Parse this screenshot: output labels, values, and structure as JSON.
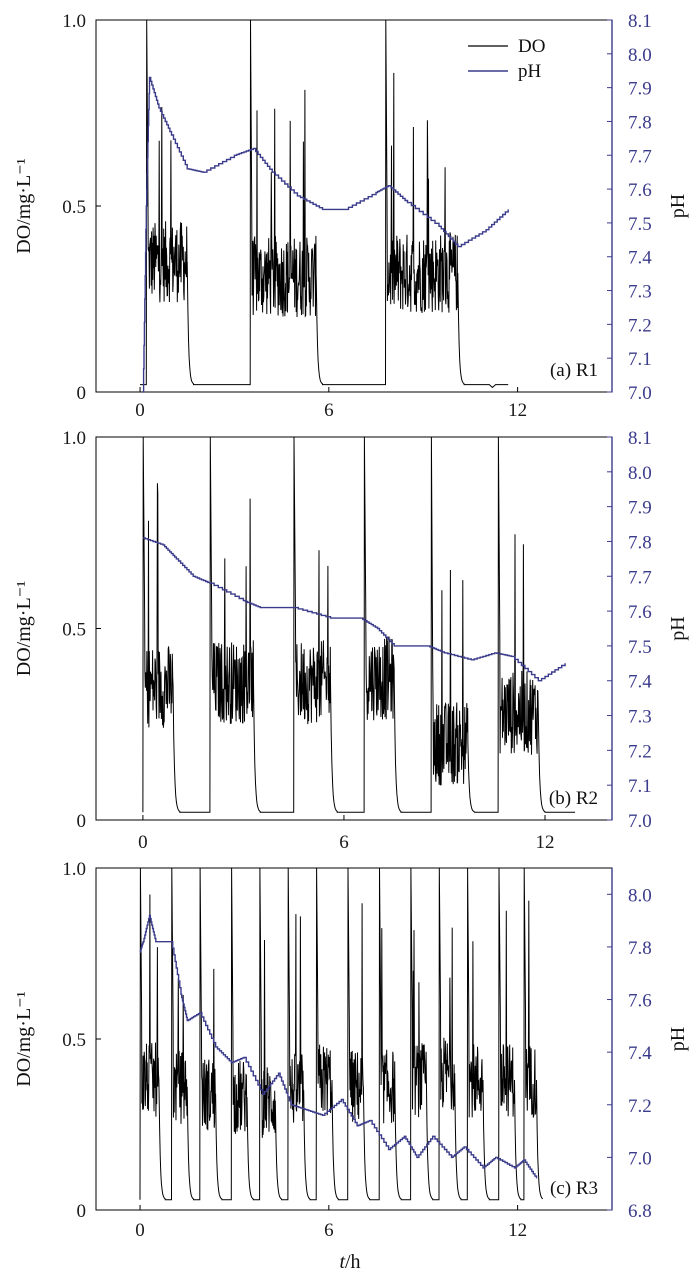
{
  "chart_data": [
    {
      "type": "line",
      "panel_label": "(a) R1",
      "xlabel": "t/h",
      "ylabel": "DO/mg·L⁻¹",
      "y2label": "pH",
      "xlim": [
        -1.4,
        15
      ],
      "ylim": [
        0,
        1.0
      ],
      "y2lim": [
        7.0,
        8.1
      ],
      "x_ticks": [
        0,
        6,
        12
      ],
      "y_ticks": [
        0,
        0.5,
        1.0
      ],
      "y_tick_labels": [
        "0",
        "0.5",
        "1.0"
      ],
      "y2_ticks": [
        7.0,
        7.1,
        7.2,
        7.3,
        7.4,
        7.5,
        7.6,
        7.7,
        7.8,
        7.9,
        8.0,
        8.1
      ],
      "legend": {
        "position": "top-right",
        "entries": [
          "DO",
          "pH"
        ]
      },
      "series": [
        {
          "name": "DO",
          "axis": "left",
          "color": "#000000",
          "aeration_phases": [
            [
              0.2,
              1.5,
              0.35
            ],
            [
              3.5,
              5.6,
              0.31
            ],
            [
              7.8,
              10.1,
              0.32
            ]
          ],
          "anoxic_level": 0.02,
          "end_x": 11.7
        },
        {
          "name": "pH",
          "axis": "right",
          "color": "#3b3b8c",
          "x": [
            0.1,
            0.2,
            0.3,
            0.6,
            1.0,
            1.5,
            2.0,
            3.0,
            3.6,
            4.2,
            5.0,
            5.8,
            6.5,
            7.5,
            7.9,
            8.5,
            9.5,
            10.1,
            11.0,
            11.7
          ],
          "y": [
            7.0,
            7.55,
            7.93,
            7.84,
            7.76,
            7.66,
            7.65,
            7.7,
            7.72,
            7.65,
            7.58,
            7.54,
            7.54,
            7.59,
            7.61,
            7.56,
            7.49,
            7.43,
            7.48,
            7.54
          ]
        }
      ]
    },
    {
      "type": "line",
      "panel_label": "(b) R2",
      "xlabel": "t/h",
      "ylabel": "DO/mg·L⁻¹",
      "y2label": "pH",
      "xlim": [
        -1.4,
        14
      ],
      "ylim": [
        0,
        1.0
      ],
      "y2lim": [
        7.0,
        8.1
      ],
      "x_ticks": [
        0,
        6,
        12
      ],
      "y_ticks": [
        0,
        0.5,
        1.0
      ],
      "y_tick_labels": [
        "0",
        "0.5",
        "1.0"
      ],
      "y2_ticks": [
        7.0,
        7.1,
        7.2,
        7.3,
        7.4,
        7.5,
        7.6,
        7.7,
        7.8,
        7.9,
        8.0,
        8.1
      ],
      "series": [
        {
          "name": "DO",
          "axis": "left",
          "color": "#000000",
          "aeration_phases": [
            [
              0.0,
              0.9,
              0.35
            ],
            [
              2.0,
              3.3,
              0.36
            ],
            [
              4.5,
              5.6,
              0.36
            ],
            [
              6.6,
              7.5,
              0.37
            ],
            [
              8.6,
              9.7,
              0.2
            ],
            [
              10.6,
              11.8,
              0.28
            ]
          ],
          "anoxic_level": 0.02,
          "end_x": 12.9
        },
        {
          "name": "pH",
          "axis": "right",
          "color": "#3b3b8c",
          "x": [
            0.0,
            0.6,
            1.0,
            1.5,
            2.0,
            3.0,
            3.5,
            4.5,
            5.6,
            6.5,
            7.0,
            7.5,
            8.5,
            9.0,
            9.8,
            10.5,
            11.0,
            11.8,
            12.6
          ],
          "y": [
            7.81,
            7.79,
            7.75,
            7.7,
            7.68,
            7.63,
            7.61,
            7.61,
            7.58,
            7.58,
            7.55,
            7.5,
            7.5,
            7.48,
            7.46,
            7.48,
            7.47,
            7.4,
            7.45
          ]
        }
      ]
    },
    {
      "type": "line",
      "panel_label": "(c) R3",
      "xlabel": "t/h",
      "ylabel": "DO/mg·L⁻¹",
      "y2label": "pH",
      "xlim": [
        -1.4,
        15
      ],
      "ylim": [
        0,
        1.0
      ],
      "y2lim": [
        6.8,
        8.1
      ],
      "x_ticks": [
        0,
        6,
        12
      ],
      "y_ticks": [
        0,
        0.5,
        1.0
      ],
      "y_tick_labels": [
        "0",
        "0.5",
        "1.0"
      ],
      "y2_ticks": [
        6.8,
        7.0,
        7.2,
        7.4,
        7.6,
        7.8,
        8.0
      ],
      "series": [
        {
          "name": "DO",
          "axis": "left",
          "color": "#000000",
          "aeration_phases": [
            [
              0.0,
              0.6,
              0.38
            ],
            [
              1.0,
              1.5,
              0.36
            ],
            [
              1.9,
              2.4,
              0.34
            ],
            [
              2.9,
              3.4,
              0.33
            ],
            [
              3.8,
              4.3,
              0.32
            ],
            [
              4.7,
              5.2,
              0.35
            ],
            [
              5.6,
              6.1,
              0.38
            ],
            [
              6.6,
              7.1,
              0.36
            ],
            [
              7.6,
              8.1,
              0.36
            ],
            [
              8.6,
              9.1,
              0.38
            ],
            [
              9.5,
              10.0,
              0.4
            ],
            [
              10.4,
              10.9,
              0.38
            ],
            [
              11.4,
              11.9,
              0.38
            ],
            [
              12.2,
              12.6,
              0.38
            ]
          ],
          "anoxic_level": 0.03,
          "end_x": 12.7
        },
        {
          "name": "pH",
          "axis": "right",
          "color": "#3b3b8c",
          "x": [
            0.0,
            0.1,
            0.3,
            0.5,
            0.8,
            1.0,
            1.3,
            1.5,
            1.9,
            2.4,
            2.9,
            3.3,
            3.9,
            4.4,
            4.8,
            5.3,
            5.8,
            6.4,
            6.9,
            7.3,
            7.9,
            8.4,
            8.8,
            9.3,
            9.9,
            10.3,
            10.9,
            11.3,
            11.9,
            12.2,
            12.6
          ],
          "y": [
            7.78,
            7.82,
            7.92,
            7.82,
            7.82,
            7.82,
            7.62,
            7.52,
            7.55,
            7.42,
            7.36,
            7.38,
            7.24,
            7.32,
            7.2,
            7.18,
            7.16,
            7.22,
            7.12,
            7.14,
            7.03,
            7.08,
            7.0,
            7.08,
            7.0,
            7.04,
            6.96,
            7.0,
            6.96,
            6.99,
            6.92
          ]
        }
      ]
    }
  ]
}
